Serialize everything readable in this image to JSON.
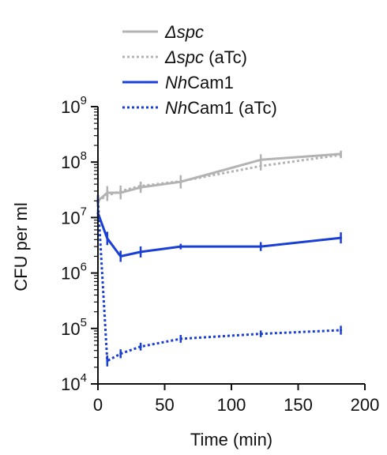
{
  "chart_data": {
    "type": "line",
    "title": "",
    "xlabel": "Time (min)",
    "ylabel": "CFU per ml",
    "xlim": [
      0,
      200
    ],
    "ylim": [
      10000,
      1000000000
    ],
    "yscale": "log",
    "xticks": [
      0,
      50,
      100,
      150,
      200
    ],
    "yticks": [
      {
        "base": "10",
        "exp": "4",
        "value": 10000
      },
      {
        "base": "10",
        "exp": "5",
        "value": 100000
      },
      {
        "base": "10",
        "exp": "6",
        "value": 1000000
      },
      {
        "base": "10",
        "exp": "7",
        "value": 10000000
      },
      {
        "base": "10",
        "exp": "8",
        "value": 100000000
      },
      {
        "base": "10",
        "exp": "9",
        "value": 1000000000
      }
    ],
    "grid": false,
    "legend_position": "top",
    "series": [
      {
        "name_italic": "Δspc",
        "name_rest": "",
        "color": "#b3b3b3",
        "style": "solid",
        "x": [
          0,
          7,
          17,
          32,
          62,
          122,
          182
        ],
        "y": [
          20000000,
          28000000,
          28000000,
          35000000,
          44000000,
          110000000,
          140000000
        ],
        "err": [
          0.12,
          0.12,
          0.12,
          0.1,
          0.12,
          0.1,
          0.06
        ]
      },
      {
        "name_italic": "Δspc",
        "name_rest": " (aTc)",
        "color": "#b3b3b3",
        "style": "dotted",
        "x": [
          0,
          7,
          17,
          32,
          62,
          122,
          182
        ],
        "y": [
          20000000,
          25000000,
          30000000,
          37000000,
          45000000,
          85000000,
          135000000
        ],
        "err": [
          0.1,
          0.1,
          0.1,
          0.08,
          0.1,
          0.08,
          0.06
        ]
      },
      {
        "name_italic": "Nh",
        "name_rest": "Cam1",
        "color": "#1a3fd6",
        "style": "solid",
        "x": [
          0,
          7,
          17,
          32,
          62,
          122,
          182
        ],
        "y": [
          12000000,
          4200000,
          2000000,
          2400000,
          3000000,
          3000000,
          4300000
        ],
        "err": [
          0.08,
          0.12,
          0.1,
          0.1,
          0.05,
          0.08,
          0.1
        ]
      },
      {
        "name_italic": "Nh",
        "name_rest": "Cam1 (aTc)",
        "color": "#1a3fd6",
        "style": "dotted",
        "x": [
          0,
          7,
          17,
          32,
          62,
          122,
          182
        ],
        "y": [
          20000000,
          26000,
          35000,
          47000,
          65000,
          80000,
          93000
        ],
        "err": [
          0.1,
          0.1,
          0.08,
          0.07,
          0.07,
          0.06,
          0.08
        ]
      }
    ]
  }
}
